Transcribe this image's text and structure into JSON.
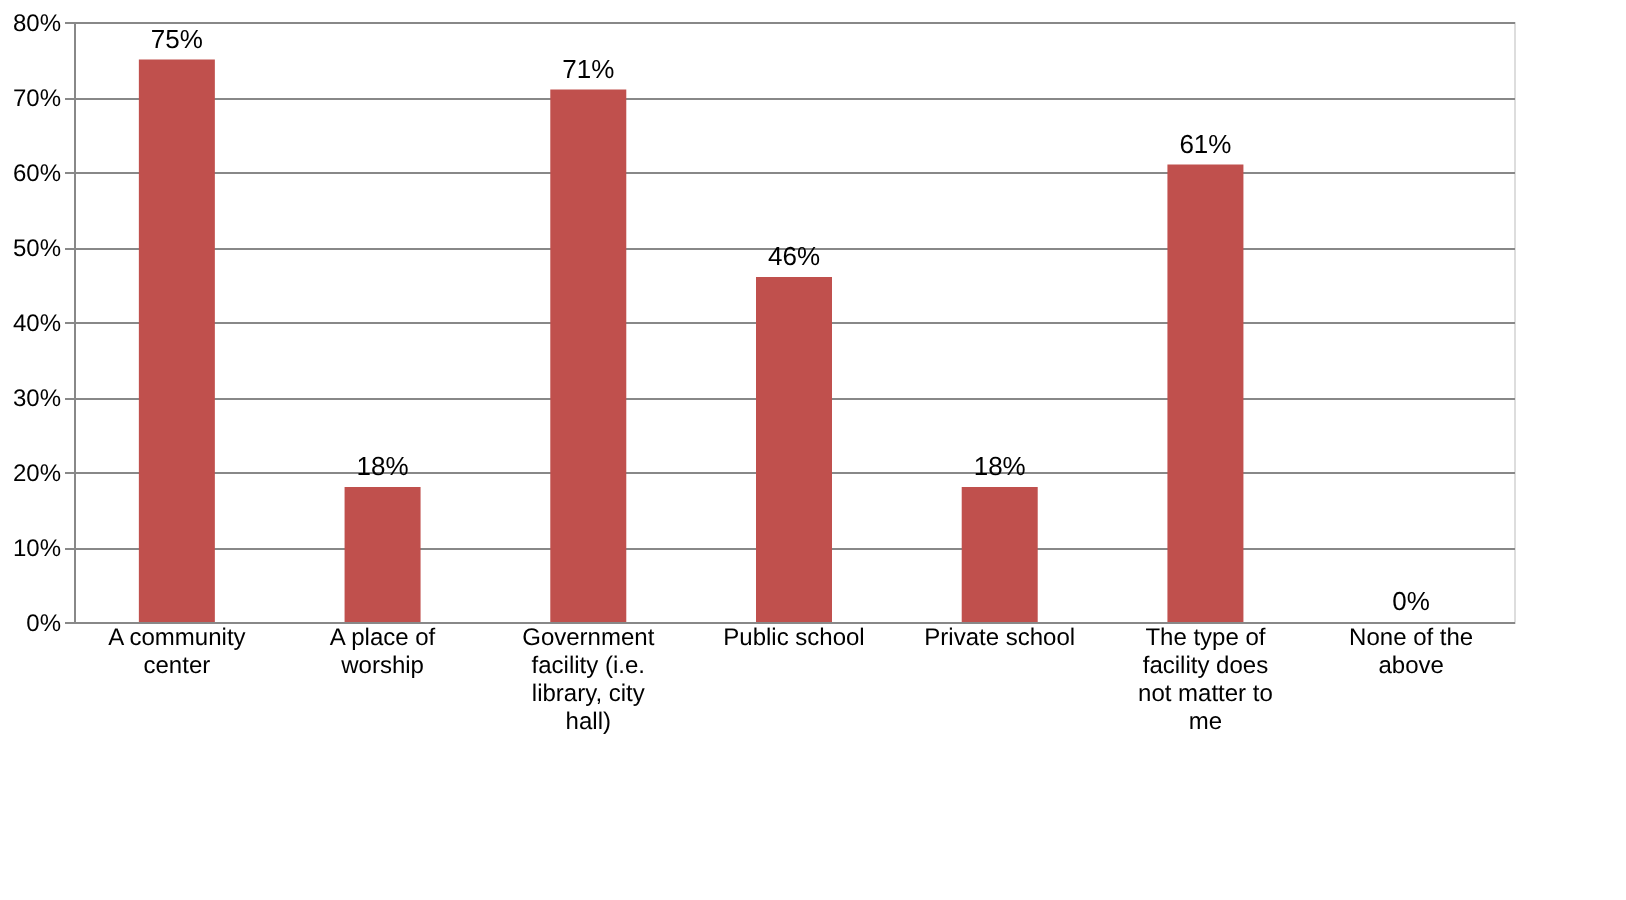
{
  "chart_data": {
    "type": "bar",
    "categories": [
      "A community center",
      "A place of worship",
      "Government facility (i.e. library, city hall)",
      "Public school",
      "Private school",
      "The type of facility does not matter to me",
      "None of the above"
    ],
    "values": [
      75,
      18,
      71,
      46,
      18,
      61,
      0
    ],
    "value_labels": [
      "75%",
      "18%",
      "71%",
      "46%",
      "18%",
      "61%",
      "0%"
    ],
    "color": "#c0504d",
    "ylim": [
      0,
      80
    ],
    "yticks": [
      {
        "value": 0,
        "label": "0%"
      },
      {
        "value": 10,
        "label": "10%"
      },
      {
        "value": 20,
        "label": "20%"
      },
      {
        "value": 30,
        "label": "30%"
      },
      {
        "value": 40,
        "label": "40%"
      },
      {
        "value": 50,
        "label": "50%"
      },
      {
        "value": 60,
        "label": "60%"
      },
      {
        "value": 70,
        "label": "70%"
      },
      {
        "value": 80,
        "label": "80%"
      }
    ],
    "grid": "y"
  }
}
